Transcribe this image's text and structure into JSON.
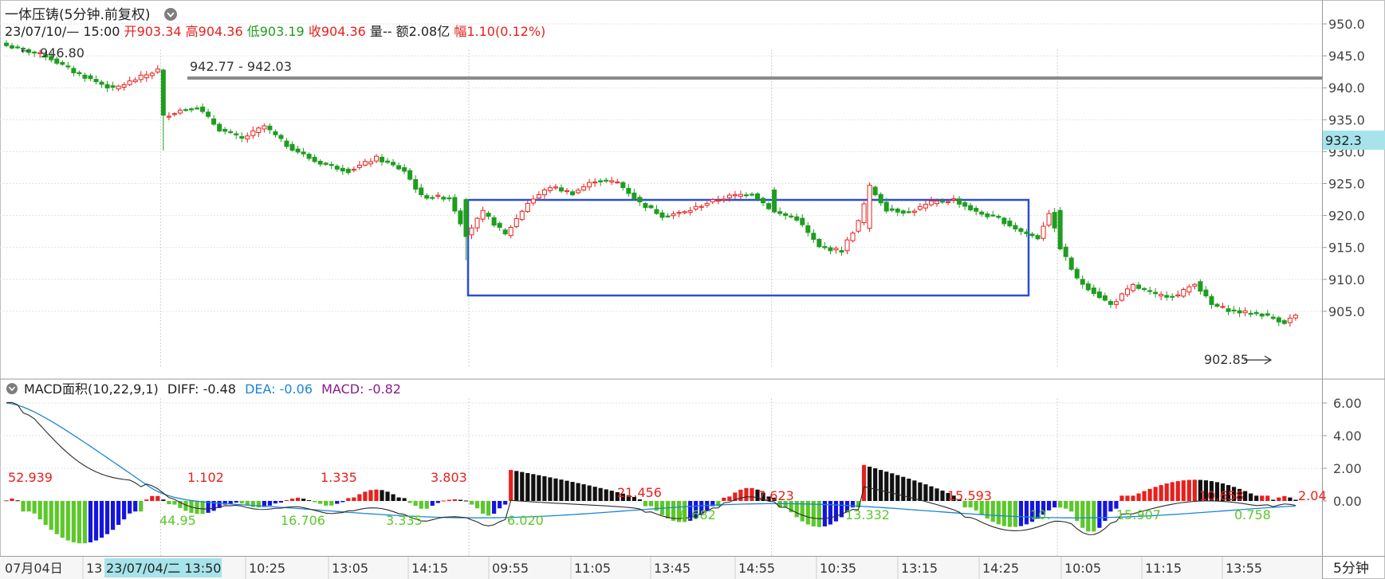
{
  "header": {
    "title": "一体压铸(5分钟.前复权)",
    "date_time": "23/07/10/— 15:00",
    "open_label": "开",
    "open_value": "903.34",
    "high_label": "高",
    "high_value": "904.36",
    "low_label": "低",
    "low_value": "903.19",
    "close_label": "收",
    "close_value": "904.36",
    "volume_label": "量",
    "volume_value": "--",
    "amount_label": "额",
    "amount_value": "2.08亿",
    "range_label": "幅",
    "range_value": "1.10(0.12%)"
  },
  "price_panel": {
    "high_annotation": "946.80",
    "level_annotation": "942.77 - 942.03",
    "low_annotation": "902.85",
    "current_price_tag": "932.3",
    "y_ticks": [
      "950.0",
      "945.0",
      "940.0",
      "935.0",
      "930.0",
      "925.0",
      "920.0",
      "915.0",
      "910.0",
      "905.0"
    ]
  },
  "macd_panel": {
    "name": "MACD面积(10,22,9,1)",
    "diff_label": "DIFF: -0.48",
    "dea_label": "DEA: -0.06",
    "macd_label": "MACD: -0.82",
    "y_ticks": [
      "6.00",
      "4.00",
      "2.00",
      "0.00"
    ],
    "area_labels_red": [
      "52.939",
      "1.102",
      "1.335",
      "3.803",
      "21.456",
      "7.623",
      "15.593",
      "10.658",
      "2.04"
    ],
    "area_labels_green": [
      "44.95",
      "16.706",
      "3.335",
      "6.020",
      "6.682",
      "13.332",
      "10.",
      "15.907",
      "0.758"
    ]
  },
  "time_axis": {
    "labels": [
      "07月04日",
      "13",
      "10:25",
      "13:05",
      "14:15",
      "09:55",
      "11:05",
      "13:45",
      "14:55",
      "10:35",
      "13:15",
      "14:25",
      "10:05",
      "11:15",
      "13:55"
    ],
    "cursor_label": "23/07/04/二 13:50",
    "period_button": "5分钟"
  },
  "colors": {
    "up": "#e8201c",
    "down": "#1f9d1f",
    "hist_down": "#5cc82a",
    "hist_blue": "#1515e0",
    "hist_black": "#111111",
    "dea_line": "#1a86d6",
    "macd_text": "#8b1a8b",
    "box_outline": "#2a4fd0",
    "price_tag_bg": "#a6e3ea"
  },
  "chart_data": {
    "type": "candlestick",
    "period": "5分钟",
    "y_range": [
      901,
      951
    ],
    "ylim_macd": [
      -2.6,
      6.6
    ],
    "annotated_high": 946.8,
    "resistance_zone": [
      942.03,
      942.77
    ],
    "annotated_low": 902.85,
    "consolidation_box": [
      912,
      925.2
    ],
    "waypoints": [
      {
        "i": 0,
        "p": 946.6
      },
      {
        "i": 7,
        "p": 945.0
      },
      {
        "i": 12,
        "p": 942.5
      },
      {
        "i": 19,
        "p": 939.8
      },
      {
        "i": 27,
        "p": 942.8
      },
      {
        "i": 28,
        "p": 935.5
      },
      {
        "i": 31,
        "p": 936.5
      },
      {
        "i": 34,
        "p": 937.0
      },
      {
        "i": 38,
        "p": 933.5
      },
      {
        "i": 42,
        "p": 932.0
      },
      {
        "i": 46,
        "p": 934.0
      },
      {
        "i": 50,
        "p": 931.0
      },
      {
        "i": 55,
        "p": 928.5
      },
      {
        "i": 61,
        "p": 927.0
      },
      {
        "i": 66,
        "p": 929.0
      },
      {
        "i": 71,
        "p": 927.0
      },
      {
        "i": 74,
        "p": 923.0
      },
      {
        "i": 79,
        "p": 922.8
      },
      {
        "i": 82,
        "p": 917.0
      },
      {
        "i": 85,
        "p": 920.5
      },
      {
        "i": 89,
        "p": 917.0
      },
      {
        "i": 93,
        "p": 922.0
      },
      {
        "i": 97,
        "p": 924.5
      },
      {
        "i": 101,
        "p": 923.5
      },
      {
        "i": 105,
        "p": 925.5
      },
      {
        "i": 109,
        "p": 925.2
      },
      {
        "i": 113,
        "p": 922.0
      },
      {
        "i": 117,
        "p": 920.0
      },
      {
        "i": 121,
        "p": 920.5
      },
      {
        "i": 125,
        "p": 922.0
      },
      {
        "i": 129,
        "p": 923.0
      },
      {
        "i": 133,
        "p": 923.5
      },
      {
        "i": 137,
        "p": 920.5
      },
      {
        "i": 141,
        "p": 919.5
      },
      {
        "i": 145,
        "p": 915.0
      },
      {
        "i": 149,
        "p": 914.5
      },
      {
        "i": 152,
        "p": 919.0
      },
      {
        "i": 154,
        "p": 924.5
      },
      {
        "i": 157,
        "p": 921.0
      },
      {
        "i": 161,
        "p": 920.5
      },
      {
        "i": 165,
        "p": 922.0
      },
      {
        "i": 169,
        "p": 922.5
      },
      {
        "i": 173,
        "p": 920.5
      },
      {
        "i": 177,
        "p": 919.5
      },
      {
        "i": 181,
        "p": 917.5
      },
      {
        "i": 184,
        "p": 916.5
      },
      {
        "i": 186,
        "p": 920.5
      },
      {
        "i": 188,
        "p": 915.0
      },
      {
        "i": 191,
        "p": 910.0
      },
      {
        "i": 194,
        "p": 908.0
      },
      {
        "i": 197,
        "p": 906.0
      },
      {
        "i": 201,
        "p": 909.0
      },
      {
        "i": 205,
        "p": 907.5
      },
      {
        "i": 209,
        "p": 907.5
      },
      {
        "i": 212,
        "p": 909.5
      },
      {
        "i": 215,
        "p": 906.0
      },
      {
        "i": 219,
        "p": 905.0
      },
      {
        "i": 224,
        "p": 904.5
      },
      {
        "i": 228,
        "p": 903.3
      },
      {
        "i": 230,
        "p": 904.36
      }
    ]
  }
}
